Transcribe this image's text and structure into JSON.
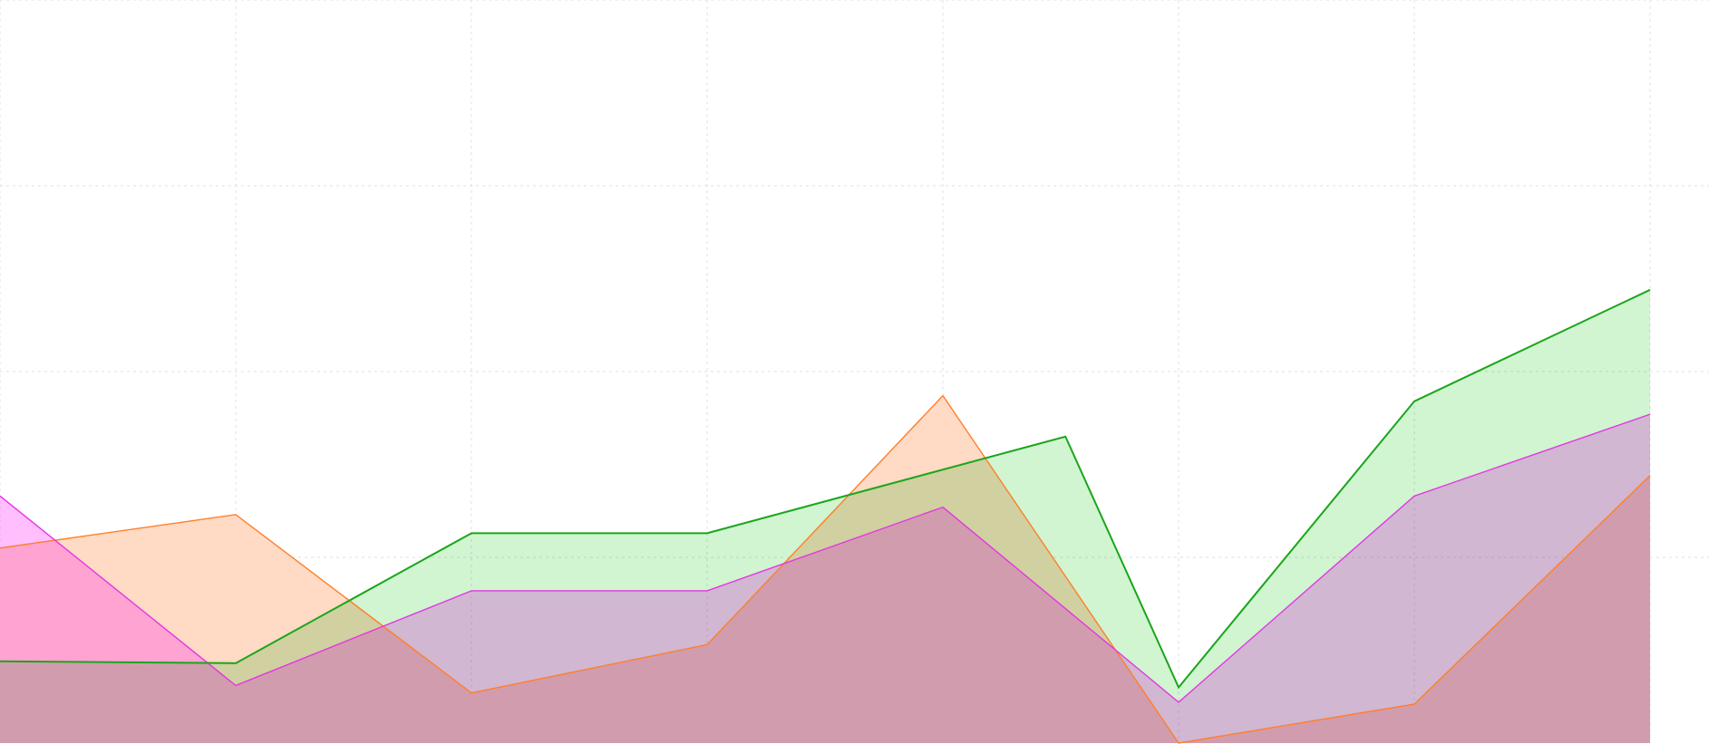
{
  "chart_data": {
    "type": "area",
    "stacked": false,
    "title": "",
    "xlabel": "",
    "ylabel": "",
    "x": [
      0,
      1,
      2,
      3,
      4,
      4.52,
      5,
      6,
      7
    ],
    "xlim": [
      0,
      7.25
    ],
    "ylim": [
      0,
      4
    ],
    "x_grid": [
      0,
      1,
      2,
      3,
      4,
      5,
      6,
      7
    ],
    "y_grid": [
      1,
      2,
      3,
      4
    ],
    "grid": true,
    "legend": "none",
    "series": [
      {
        "color": "#ff7f2a",
        "fill": "#ffdac4",
        "values": [
          1.05,
          1.23,
          0.27,
          0.53,
          1.87,
          null,
          0.0,
          0.21,
          1.44
        ]
      },
      {
        "color": "#e535e5",
        "fill": "#ff00ff",
        "values": [
          1.33,
          0.31,
          0.82,
          0.82,
          1.27,
          null,
          0.22,
          1.33,
          1.77
        ]
      },
      {
        "color": "#1aa61a",
        "fill": "#2ecc2e",
        "values": [
          0.44,
          0.43,
          1.13,
          1.13,
          null,
          1.65,
          0.3,
          1.84,
          2.44
        ]
      }
    ]
  }
}
